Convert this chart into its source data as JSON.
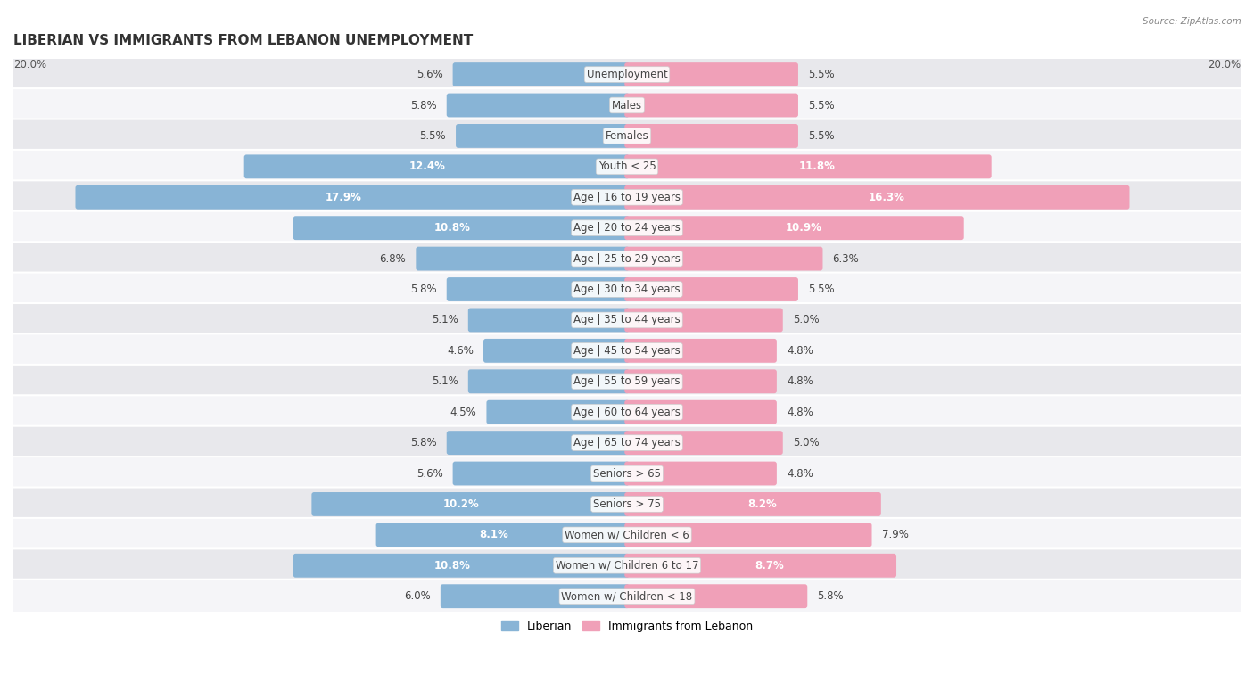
{
  "title": "LIBERIAN VS IMMIGRANTS FROM LEBANON UNEMPLOYMENT",
  "source": "Source: ZipAtlas.com",
  "categories": [
    "Unemployment",
    "Males",
    "Females",
    "Youth < 25",
    "Age | 16 to 19 years",
    "Age | 20 to 24 years",
    "Age | 25 to 29 years",
    "Age | 30 to 34 years",
    "Age | 35 to 44 years",
    "Age | 45 to 54 years",
    "Age | 55 to 59 years",
    "Age | 60 to 64 years",
    "Age | 65 to 74 years",
    "Seniors > 65",
    "Seniors > 75",
    "Women w/ Children < 6",
    "Women w/ Children 6 to 17",
    "Women w/ Children < 18"
  ],
  "liberian": [
    5.6,
    5.8,
    5.5,
    12.4,
    17.9,
    10.8,
    6.8,
    5.8,
    5.1,
    4.6,
    5.1,
    4.5,
    5.8,
    5.6,
    10.2,
    8.1,
    10.8,
    6.0
  ],
  "lebanon": [
    5.5,
    5.5,
    5.5,
    11.8,
    16.3,
    10.9,
    6.3,
    5.5,
    5.0,
    4.8,
    4.8,
    4.8,
    5.0,
    4.8,
    8.2,
    7.9,
    8.7,
    5.8
  ],
  "color_liberian": "#88b4d6",
  "color_lebanon": "#f0a0b8",
  "color_row_light": "#e8e8ec",
  "color_row_white": "#f5f5f8",
  "axis_max": 20.0,
  "label_fontsize": 8.5,
  "title_fontsize": 11,
  "bar_height": 0.62,
  "legend_label_liberian": "Liberian",
  "legend_label_lebanon": "Immigrants from Lebanon"
}
